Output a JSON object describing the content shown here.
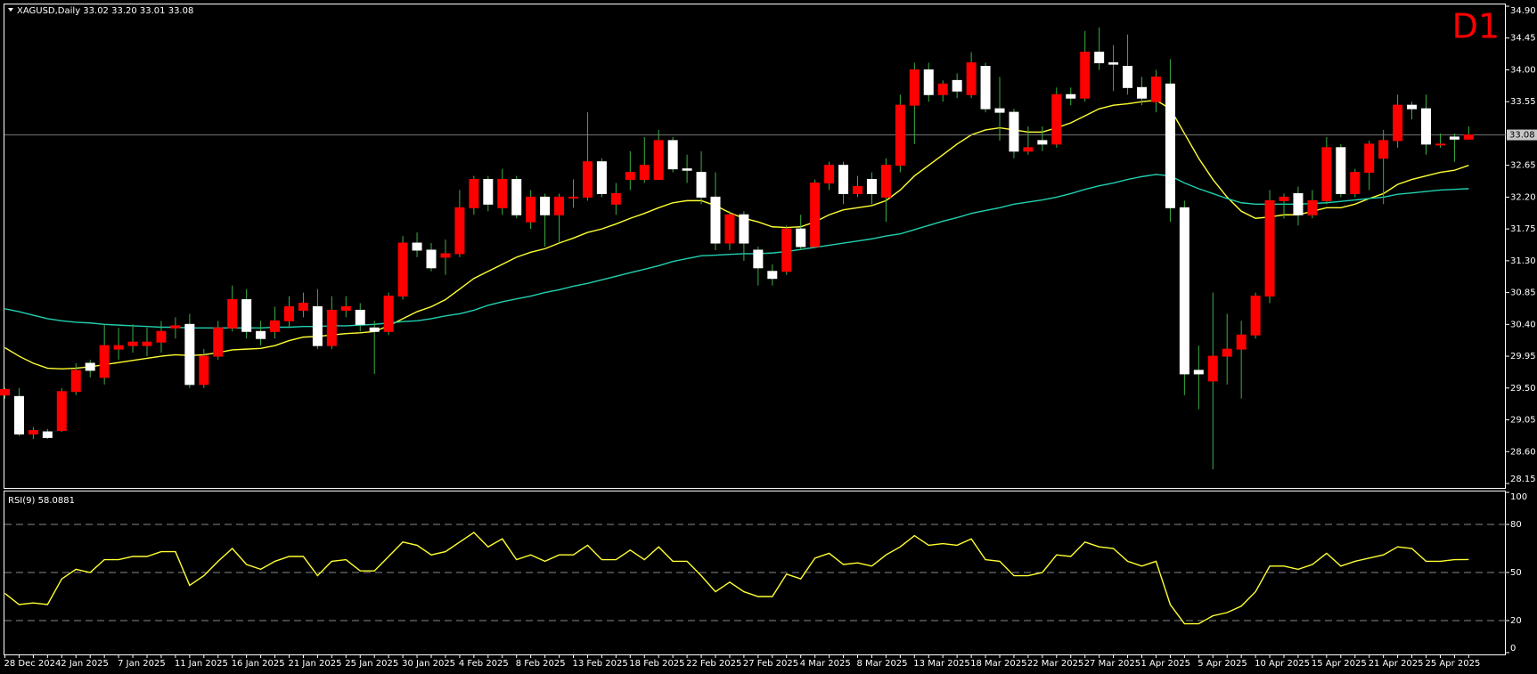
{
  "chart_data": [
    {
      "type": "candlestick",
      "title": "XAGUSD,Daily 33.02 33.20 33.01 33.08",
      "badge": "D1",
      "categories": [
        "28 Dec 2024",
        null,
        null,
        null,
        "2 Jan 2025",
        null,
        null,
        null,
        "7 Jan 2025",
        null,
        null,
        null,
        "11 Jan 2025",
        null,
        null,
        null,
        "16 Jan 2025",
        null,
        null,
        null,
        "21 Jan 2025",
        null,
        null,
        null,
        "25 Jan 2025",
        null,
        null,
        null,
        "30 Jan 2025",
        null,
        null,
        null,
        "4 Feb 2025",
        null,
        null,
        null,
        "8 Feb 2025",
        null,
        null,
        null,
        "13 Feb 2025",
        null,
        null,
        null,
        "18 Feb 2025",
        null,
        null,
        null,
        "22 Feb 2025",
        null,
        null,
        null,
        "27 Feb 2025",
        null,
        null,
        null,
        "4 Mar 2025",
        null,
        null,
        null,
        "8 Mar 2025",
        null,
        null,
        null,
        "13 Mar 2025",
        null,
        null,
        null,
        "18 Mar 2025",
        null,
        null,
        null,
        "22 Mar 2025",
        null,
        null,
        null,
        "27 Mar 2025",
        null,
        null,
        null,
        "1 Apr 2025",
        null,
        null,
        null,
        "5 Apr 2025",
        null,
        null,
        null,
        "10 Apr 2025",
        null,
        null,
        null,
        "15 Apr 2025",
        null,
        null,
        null,
        "21 Apr 2025",
        null,
        null,
        null,
        "25 Apr 2025",
        null,
        null,
        null
      ],
      "open": [
        29.4,
        29.38,
        28.85,
        28.88,
        28.9,
        29.45,
        29.85,
        29.65,
        30.05,
        30.1,
        30.1,
        30.15,
        30.35,
        30.4,
        29.55,
        29.95,
        30.35,
        30.75,
        30.3,
        30.3,
        30.45,
        30.6,
        30.65,
        30.1,
        30.6,
        30.6,
        30.35,
        30.3,
        30.8,
        31.55,
        31.45,
        31.35,
        31.4,
        32.05,
        32.45,
        32.05,
        32.45,
        31.85,
        32.2,
        31.95,
        32.2,
        32.2,
        32.7,
        32.1,
        32.45,
        32.45,
        32.45,
        33.0,
        32.6,
        32.55,
        32.2,
        31.55,
        31.95,
        31.45,
        31.15,
        31.15,
        31.75,
        31.5,
        32.4,
        32.65,
        32.25,
        32.45,
        32.2,
        32.65,
        33.5,
        34.0,
        33.65,
        33.85,
        33.65,
        34.05,
        33.45,
        33.4,
        32.85,
        33.0,
        32.95,
        33.65,
        33.6,
        34.25,
        34.1,
        34.05,
        33.75,
        33.55,
        33.8,
        32.05,
        29.75,
        29.6,
        29.95,
        30.05,
        30.25,
        30.8,
        32.15,
        32.25,
        31.95,
        32.15,
        32.9,
        32.25,
        32.55,
        32.75,
        33.0,
        33.5,
        33.45,
        32.95,
        33.05,
        33.02
      ],
      "high": [
        29.5,
        29.5,
        28.95,
        28.92,
        29.5,
        29.85,
        29.9,
        30.4,
        30.35,
        30.4,
        30.35,
        30.45,
        30.5,
        30.55,
        30.05,
        30.45,
        30.95,
        30.9,
        30.45,
        30.65,
        30.8,
        30.85,
        30.9,
        30.8,
        30.8,
        30.7,
        30.45,
        30.85,
        31.65,
        31.7,
        31.55,
        31.6,
        32.3,
        32.5,
        32.5,
        32.6,
        32.5,
        32.3,
        32.25,
        32.25,
        32.45,
        33.4,
        32.75,
        32.4,
        32.85,
        33.05,
        33.15,
        33.05,
        32.8,
        32.85,
        32.55,
        32.0,
        32.0,
        31.5,
        31.25,
        31.8,
        31.95,
        32.45,
        32.7,
        32.7,
        32.5,
        32.55,
        32.75,
        33.65,
        34.1,
        34.1,
        33.85,
        33.95,
        34.25,
        34.1,
        33.9,
        33.45,
        33.2,
        33.2,
        33.75,
        33.75,
        34.55,
        34.6,
        34.35,
        34.5,
        33.9,
        34.0,
        34.15,
        32.15,
        30.1,
        30.85,
        30.55,
        30.45,
        30.85,
        32.3,
        32.25,
        32.35,
        32.3,
        33.05,
        32.95,
        32.6,
        33.0,
        33.15,
        33.65,
        33.55,
        33.65,
        33.1,
        33.1,
        33.2
      ],
      "low": [
        29.35,
        28.82,
        28.78,
        28.78,
        28.88,
        29.4,
        29.65,
        29.55,
        29.9,
        30.0,
        29.95,
        30.0,
        30.2,
        29.5,
        29.5,
        29.9,
        30.3,
        30.2,
        30.1,
        30.2,
        30.35,
        30.5,
        30.05,
        30.05,
        30.5,
        30.3,
        29.7,
        30.25,
        30.75,
        31.35,
        31.15,
        31.1,
        31.35,
        31.95,
        32.0,
        31.95,
        31.9,
        31.75,
        31.5,
        31.55,
        32.05,
        32.15,
        32.2,
        31.95,
        32.3,
        32.4,
        32.45,
        32.55,
        32.4,
        32.1,
        31.45,
        31.45,
        31.3,
        30.95,
        30.95,
        31.1,
        31.45,
        31.5,
        32.3,
        32.1,
        32.2,
        32.1,
        31.85,
        32.55,
        32.95,
        33.55,
        33.55,
        33.6,
        33.6,
        33.4,
        33.0,
        32.75,
        32.8,
        32.85,
        32.9,
        33.5,
        33.55,
        34.0,
        33.7,
        33.65,
        33.5,
        33.4,
        31.85,
        29.4,
        29.2,
        28.35,
        29.55,
        29.35,
        30.2,
        30.7,
        31.9,
        31.8,
        31.9,
        32.1,
        32.2,
        32.2,
        32.3,
        32.1,
        32.9,
        33.3,
        32.8,
        32.9,
        32.7,
        33.01
      ],
      "close": [
        29.48,
        28.85,
        28.9,
        28.8,
        29.45,
        29.75,
        29.75,
        30.1,
        30.1,
        30.15,
        30.15,
        30.3,
        30.38,
        29.55,
        29.95,
        30.35,
        30.75,
        30.3,
        30.2,
        30.45,
        30.65,
        30.7,
        30.1,
        30.6,
        30.65,
        30.4,
        30.3,
        30.8,
        31.55,
        31.45,
        31.2,
        31.4,
        32.05,
        32.45,
        32.1,
        32.45,
        31.95,
        32.2,
        31.95,
        32.2,
        32.2,
        32.7,
        32.25,
        32.25,
        32.55,
        32.65,
        33.0,
        32.6,
        32.58,
        32.2,
        31.55,
        31.95,
        31.55,
        31.2,
        31.05,
        31.75,
        31.5,
        32.4,
        32.65,
        32.25,
        32.35,
        32.25,
        32.65,
        33.5,
        34.0,
        33.65,
        33.8,
        33.7,
        34.1,
        33.45,
        33.4,
        32.85,
        32.9,
        32.95,
        33.65,
        33.6,
        34.25,
        34.1,
        34.08,
        33.75,
        33.6,
        33.9,
        32.05,
        29.7,
        29.7,
        29.95,
        30.05,
        30.25,
        30.8,
        32.15,
        32.2,
        31.95,
        32.15,
        32.9,
        32.25,
        32.55,
        32.95,
        33.0,
        33.5,
        33.45,
        32.95,
        32.95,
        33.02,
        33.08
      ],
      "up_color": "#ff0000",
      "down_color": "#ffffff",
      "wick_color": "#3cb043",
      "lines": [
        {
          "color": "#ffff33",
          "values": [
            30.07,
            29.95,
            29.85,
            29.78,
            29.77,
            29.78,
            29.8,
            29.83,
            29.86,
            29.89,
            29.92,
            29.95,
            29.97,
            29.96,
            29.97,
            30.0,
            30.04,
            30.05,
            30.06,
            30.1,
            30.17,
            30.22,
            30.23,
            30.25,
            30.27,
            30.28,
            30.3,
            30.38,
            30.48,
            30.58,
            30.65,
            30.75,
            30.9,
            31.05,
            31.15,
            31.25,
            31.35,
            31.42,
            31.47,
            31.55,
            31.62,
            31.7,
            31.75,
            31.82,
            31.9,
            31.97,
            32.05,
            32.12,
            32.15,
            32.15,
            32.08,
            31.98,
            31.9,
            31.85,
            31.78,
            31.77,
            31.78,
            31.85,
            31.95,
            32.02,
            32.05,
            32.08,
            32.15,
            32.3,
            32.5,
            32.65,
            32.8,
            32.95,
            33.08,
            33.15,
            33.18,
            33.15,
            33.12,
            33.12,
            33.18,
            33.25,
            33.35,
            33.45,
            33.5,
            33.52,
            33.55,
            33.57,
            33.45,
            33.1,
            32.75,
            32.45,
            32.2,
            32.0,
            31.9,
            31.92,
            31.95,
            31.95,
            32.0,
            32.05,
            32.05,
            32.1,
            32.18,
            32.25,
            32.38,
            32.45,
            32.5,
            32.55,
            32.58,
            32.65
          ]
        },
        {
          "color": "#20d0b0",
          "values": [
            30.62,
            30.58,
            30.53,
            30.48,
            30.45,
            30.43,
            30.42,
            30.4,
            30.39,
            30.38,
            30.37,
            30.36,
            30.36,
            30.35,
            30.35,
            30.35,
            30.35,
            30.35,
            30.35,
            30.36,
            30.36,
            30.37,
            30.37,
            30.38,
            30.38,
            30.39,
            30.4,
            30.42,
            30.44,
            30.45,
            30.48,
            30.52,
            30.55,
            30.6,
            30.67,
            30.72,
            30.76,
            30.8,
            30.85,
            30.89,
            30.94,
            30.98,
            31.03,
            31.08,
            31.13,
            31.18,
            31.23,
            31.29,
            31.33,
            31.37,
            31.38,
            31.39,
            31.4,
            31.4,
            31.41,
            31.43,
            31.46,
            31.49,
            31.52,
            31.55,
            31.58,
            31.61,
            31.65,
            31.68,
            31.74,
            31.8,
            31.86,
            31.91,
            31.97,
            32.01,
            32.05,
            32.1,
            32.13,
            32.16,
            32.2,
            32.25,
            32.31,
            32.36,
            32.4,
            32.45,
            32.49,
            32.52,
            32.5,
            32.4,
            32.32,
            32.25,
            32.18,
            32.12,
            32.1,
            32.1,
            32.1,
            32.1,
            32.11,
            32.12,
            32.14,
            32.16,
            32.18,
            32.2,
            32.24,
            32.26,
            32.28,
            32.3,
            32.31,
            32.32
          ]
        }
      ],
      "price_line": 33.08,
      "ylim": [
        28.15,
        34.9
      ],
      "yticks": [
        28.15,
        {
          "value": 28.6,
          "label": "28.60"
        },
        29.05,
        {
          "value": 29.5,
          "label": "29.50"
        },
        29.95,
        {
          "value": 30.4,
          "label": "30.40"
        },
        30.85,
        {
          "value": 31.3,
          "label": "31.30"
        },
        31.75,
        {
          "value": 32.2,
          "label": "32.20"
        },
        32.65,
        33.55,
        {
          "value": 34.0,
          "label": "34.00"
        },
        34.45,
        {
          "value": 34.9,
          "label": "34.90"
        }
      ]
    },
    {
      "type": "line",
      "title": "RSI(9) 58.0881",
      "color": "#ffff33",
      "values": [
        37,
        30,
        31,
        30,
        46,
        52,
        50,
        58,
        58,
        60,
        60,
        63,
        63,
        42,
        48,
        57,
        65,
        55,
        52,
        57,
        60,
        60,
        48,
        57,
        58,
        51,
        51,
        60,
        69,
        67,
        61,
        63,
        69,
        75,
        66,
        71,
        58,
        61,
        57,
        61,
        61,
        67,
        58,
        58,
        64,
        58,
        66,
        57,
        57,
        48,
        38,
        44,
        38,
        35,
        35,
        49,
        46,
        59,
        62,
        55,
        56,
        54,
        61,
        66,
        73,
        67,
        68,
        67,
        71,
        58,
        57,
        48,
        48,
        50,
        61,
        60,
        69,
        66,
        65,
        57,
        54,
        57,
        30,
        18,
        18,
        23,
        25,
        29,
        38,
        54,
        54,
        52,
        55,
        62,
        54,
        57,
        59,
        61,
        66,
        65,
        57,
        57,
        58,
        58.0881
      ],
      "ylim": [
        0,
        100
      ],
      "yticks": [
        0,
        20,
        50,
        80,
        100
      ],
      "levels": [
        20,
        50,
        80
      ]
    }
  ]
}
